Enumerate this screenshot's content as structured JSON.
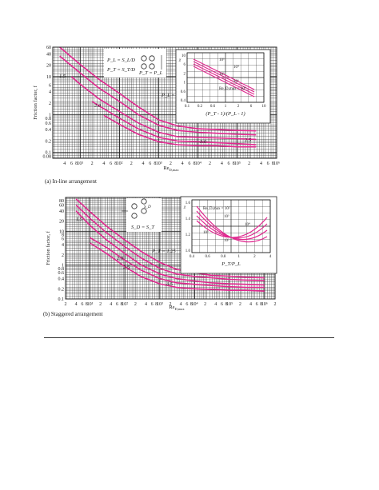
{
  "page": {
    "background": "#ffffff",
    "curve_color": "#e0288f"
  },
  "chart_data": [
    {
      "type": "line",
      "caption": "(a) In-line arrangement",
      "ylabel": "Friction factor, f",
      "xlabel": "Re",
      "xlabel_sub": "D,max",
      "x_scale": "log",
      "y_scale": "log",
      "xlim": [
        2,
        1000000
      ],
      "ylim": [
        0.07,
        60
      ],
      "y_ticks": [
        "60",
        "40",
        "20",
        "10",
        "6",
        "4",
        "2",
        "1",
        "0.8",
        "0.6",
        "0.4",
        "0.2",
        "0.1",
        "0.08"
      ],
      "x_tick_labels": [
        "4",
        "6",
        "8",
        "10¹",
        "2",
        "4",
        "6",
        "8",
        "10²",
        "2",
        "4",
        "6",
        "8",
        "10³",
        "2",
        "4",
        "6",
        "8",
        "10⁴",
        "2",
        "4",
        "6",
        "8",
        "10⁵",
        "2",
        "4",
        "6",
        "8",
        "10⁶"
      ],
      "annotations": [
        "P_L = S_L/D",
        "P_T = S_T/D",
        "P_T = P_L",
        "S_T",
        "S_L",
        "V",
        "P_L = 1.25",
        "1.5",
        "2.0",
        "2.5",
        "3.0"
      ],
      "series": [
        {
          "name": "1.25",
          "x": [
            3,
            10,
            30,
            100,
            300,
            1000,
            3000,
            10000,
            30000,
            100000,
            300000
          ],
          "y": [
            60,
            21,
            8.5,
            3.6,
            1.6,
            0.72,
            0.5,
            0.42,
            0.4,
            0.38,
            0.37
          ]
        },
        {
          "name": "1.5",
          "x": [
            3,
            10,
            30,
            100,
            300,
            1000,
            3000,
            10000,
            30000,
            100000,
            300000
          ],
          "y": [
            35,
            12.5,
            5,
            2.2,
            1.0,
            0.52,
            0.38,
            0.34,
            0.32,
            0.3,
            0.29
          ]
        },
        {
          "name": "2.0",
          "x": [
            6,
            10,
            30,
            100,
            300,
            1000,
            3000,
            10000,
            30000,
            100000,
            300000
          ],
          "y": [
            10,
            6.3,
            2.6,
            1.2,
            0.6,
            0.34,
            0.26,
            0.25,
            0.24,
            0.23,
            0.22
          ]
        },
        {
          "name": "2.5",
          "x": [
            20,
            30,
            100,
            300,
            1000,
            3000,
            10000,
            30000,
            100000,
            300000
          ],
          "y": [
            2.2,
            1.7,
            0.8,
            0.42,
            0.25,
            0.2,
            0.19,
            0.18,
            0.17,
            0.16
          ]
        },
        {
          "name": "3.0",
          "x": [
            40,
            100,
            300,
            1000,
            3000,
            10000,
            30000,
            100000,
            300000
          ],
          "y": [
            0.95,
            0.55,
            0.3,
            0.19,
            0.16,
            0.15,
            0.15,
            0.14,
            0.14
          ]
        }
      ],
      "inset": {
        "xlabel": "(P_T - 1)/(P_L - 1)",
        "ylabel": "χ",
        "x_ticks": [
          "0.1",
          "0.2",
          "0.6",
          "1",
          "2",
          "6",
          "10"
        ],
        "y_ticks": [
          "10",
          "6",
          "2",
          "1",
          "0.6",
          "0.4"
        ],
        "series_labels": [
          "10³",
          "10⁴",
          "10⁵",
          "10⁶",
          "Re_D,max = 10⁶"
        ]
      }
    },
    {
      "type": "line",
      "caption": "(b) Staggered arrangement",
      "ylabel": "Friction factor, f",
      "xlabel": "Re",
      "xlabel_sub": "D,max",
      "x_scale": "log",
      "y_scale": "log",
      "xlim": [
        2,
        2000000
      ],
      "ylim": [
        0.1,
        100
      ],
      "y_ticks": [
        "80",
        "60",
        "40",
        "20",
        "10",
        "8",
        "6",
        "4",
        "2",
        "1",
        "0.8",
        "0.6",
        "0.4",
        "0.2",
        "0.1"
      ],
      "x_tick_labels": [
        "2",
        "4",
        "6",
        "8",
        "10¹",
        "2",
        "4",
        "6",
        "8",
        "10²",
        "2",
        "4",
        "6",
        "8",
        "10³",
        "2",
        "4",
        "6",
        "8",
        "10⁴",
        "2",
        "4",
        "6",
        "8",
        "10⁵",
        "2",
        "4",
        "6",
        "8",
        "10⁶",
        "2"
      ],
      "annotations": [
        "S_D",
        "S_T",
        "S_D = S_T",
        "V",
        "P_T = 1.25",
        "1.5",
        "2.0",
        "2.5",
        "3.5"
      ],
      "series": [
        {
          "name": "1.25",
          "x": [
            4,
            10,
            30,
            100,
            300,
            1000,
            3000,
            10000,
            30000,
            100000,
            300000,
            1000000
          ],
          "y": [
            90,
            38,
            14,
            5.5,
            2.5,
            1.2,
            0.75,
            0.6,
            0.5,
            0.47,
            0.44,
            0.42
          ]
        },
        {
          "name": "1.5",
          "x": [
            4,
            10,
            30,
            100,
            300,
            1000,
            3000,
            10000,
            30000,
            100000,
            300000,
            1000000
          ],
          "y": [
            60,
            24,
            9,
            3.5,
            1.6,
            0.8,
            0.55,
            0.46,
            0.42,
            0.38,
            0.36,
            0.35
          ]
        },
        {
          "name": "2.0",
          "x": [
            4,
            10,
            30,
            100,
            300,
            1000,
            3000,
            10000,
            30000,
            100000,
            300000,
            1000000
          ],
          "y": [
            40,
            15,
            5.5,
            2.2,
            1.0,
            0.55,
            0.4,
            0.34,
            0.3,
            0.28,
            0.27,
            0.26
          ]
        },
        {
          "name": "2.5",
          "x": [
            10,
            30,
            100,
            300,
            1000,
            3000,
            10000,
            30000,
            100000,
            300000,
            1000000
          ],
          "y": [
            6.5,
            3.3,
            1.4,
            0.7,
            0.4,
            0.3,
            0.27,
            0.25,
            0.23,
            0.22,
            0.22
          ]
        },
        {
          "name": "3.5",
          "x": [
            10,
            30,
            100,
            300,
            1000,
            3000,
            10000,
            30000,
            100000,
            300000,
            1000000
          ],
          "y": [
            4.5,
            2.2,
            0.9,
            0.45,
            0.28,
            0.22,
            0.2,
            0.19,
            0.18,
            0.18,
            0.17
          ]
        }
      ],
      "inset": {
        "xlabel": "P_T/P_L",
        "ylabel": "χ",
        "x_ticks": [
          "0.4",
          "0.6",
          "0.8",
          "1",
          "2",
          "4"
        ],
        "y_ticks": [
          "1.6",
          "1.4",
          "1.2",
          "1.0"
        ],
        "series_labels": [
          "Re_D,max = 10²",
          "10³",
          "10⁴",
          "10⁵",
          "10²"
        ]
      }
    }
  ]
}
